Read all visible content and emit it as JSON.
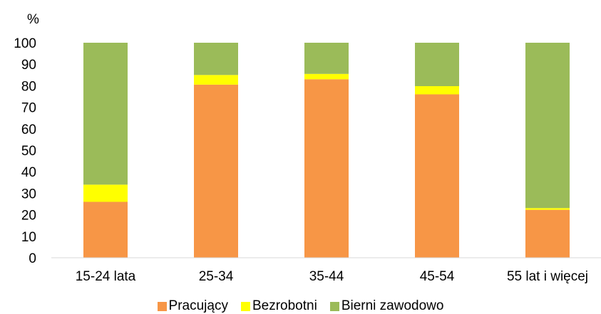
{
  "chart_data": {
    "type": "bar",
    "stacked": true,
    "unit_label": "%",
    "categories": [
      "15-24 lata",
      "25-34",
      "35-44",
      "45-54",
      "55 lat i więcej"
    ],
    "series": [
      {
        "name": "Pracujący",
        "color": "#F79646",
        "values": [
          26,
          80.5,
          83,
          76,
          22.3
        ]
      },
      {
        "name": "Bezrobotni",
        "color": "#FFFF00",
        "values": [
          8,
          4.5,
          2.5,
          3.8,
          0.8
        ]
      },
      {
        "name": "Bierni zawodowo",
        "color": "#9BBB59",
        "values": [
          66,
          15,
          14.5,
          20.2,
          76.9
        ]
      }
    ],
    "ylim": [
      0,
      100
    ],
    "yticks": [
      0,
      10,
      20,
      30,
      40,
      50,
      60,
      70,
      80,
      90,
      100
    ],
    "grid": false,
    "legend_position": "bottom"
  }
}
